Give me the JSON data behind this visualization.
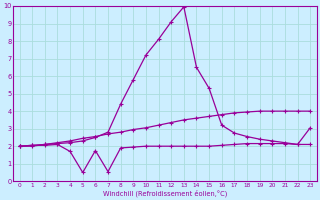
{
  "bg_color": "#cceeff",
  "grid_color": "#aadddd",
  "line_color": "#990099",
  "xlim": [
    -0.5,
    23.5
  ],
  "ylim": [
    0,
    10
  ],
  "xlabel": "Windchill (Refroidissement éolien,°C)",
  "xticks": [
    0,
    1,
    2,
    3,
    4,
    5,
    6,
    7,
    8,
    9,
    10,
    11,
    12,
    13,
    14,
    15,
    16,
    17,
    18,
    19,
    20,
    21,
    22,
    23
  ],
  "yticks": [
    0,
    1,
    2,
    3,
    4,
    5,
    6,
    7,
    8,
    9,
    10
  ],
  "peak_x": [
    0,
    1,
    2,
    3,
    4,
    5,
    6,
    7,
    8,
    9,
    10,
    11,
    12,
    13,
    14,
    15,
    16,
    17,
    18,
    19,
    20,
    21,
    22,
    23
  ],
  "peak_y": [
    2.0,
    2.0,
    2.1,
    2.15,
    2.2,
    2.3,
    2.5,
    2.8,
    4.4,
    5.8,
    7.2,
    8.1,
    9.1,
    9.95,
    6.5,
    5.3,
    3.2,
    2.75,
    2.55,
    2.4,
    2.3,
    2.2,
    2.1,
    3.05
  ],
  "slope_x": [
    0,
    1,
    2,
    3,
    4,
    5,
    6,
    7,
    8,
    9,
    10,
    11,
    12,
    13,
    14,
    15,
    16,
    17,
    18,
    19,
    20,
    21,
    22,
    23
  ],
  "slope_y": [
    2.0,
    2.05,
    2.1,
    2.2,
    2.3,
    2.45,
    2.55,
    2.7,
    2.8,
    2.95,
    3.05,
    3.2,
    3.35,
    3.5,
    3.6,
    3.7,
    3.8,
    3.9,
    3.95,
    4.0,
    4.0,
    4.0,
    4.0,
    4.0
  ],
  "flat_x": [
    0,
    1,
    2,
    3,
    4,
    5,
    6,
    7,
    8,
    9,
    10,
    11,
    12,
    13,
    14,
    15,
    16,
    17,
    18,
    19,
    20,
    21,
    22,
    23
  ],
  "flat_y": [
    2.0,
    2.05,
    2.05,
    2.1,
    1.7,
    0.5,
    1.75,
    0.55,
    1.9,
    1.95,
    2.0,
    2.0,
    2.0,
    2.0,
    2.0,
    2.0,
    2.05,
    2.1,
    2.15,
    2.15,
    2.15,
    2.15,
    2.1,
    2.1
  ]
}
